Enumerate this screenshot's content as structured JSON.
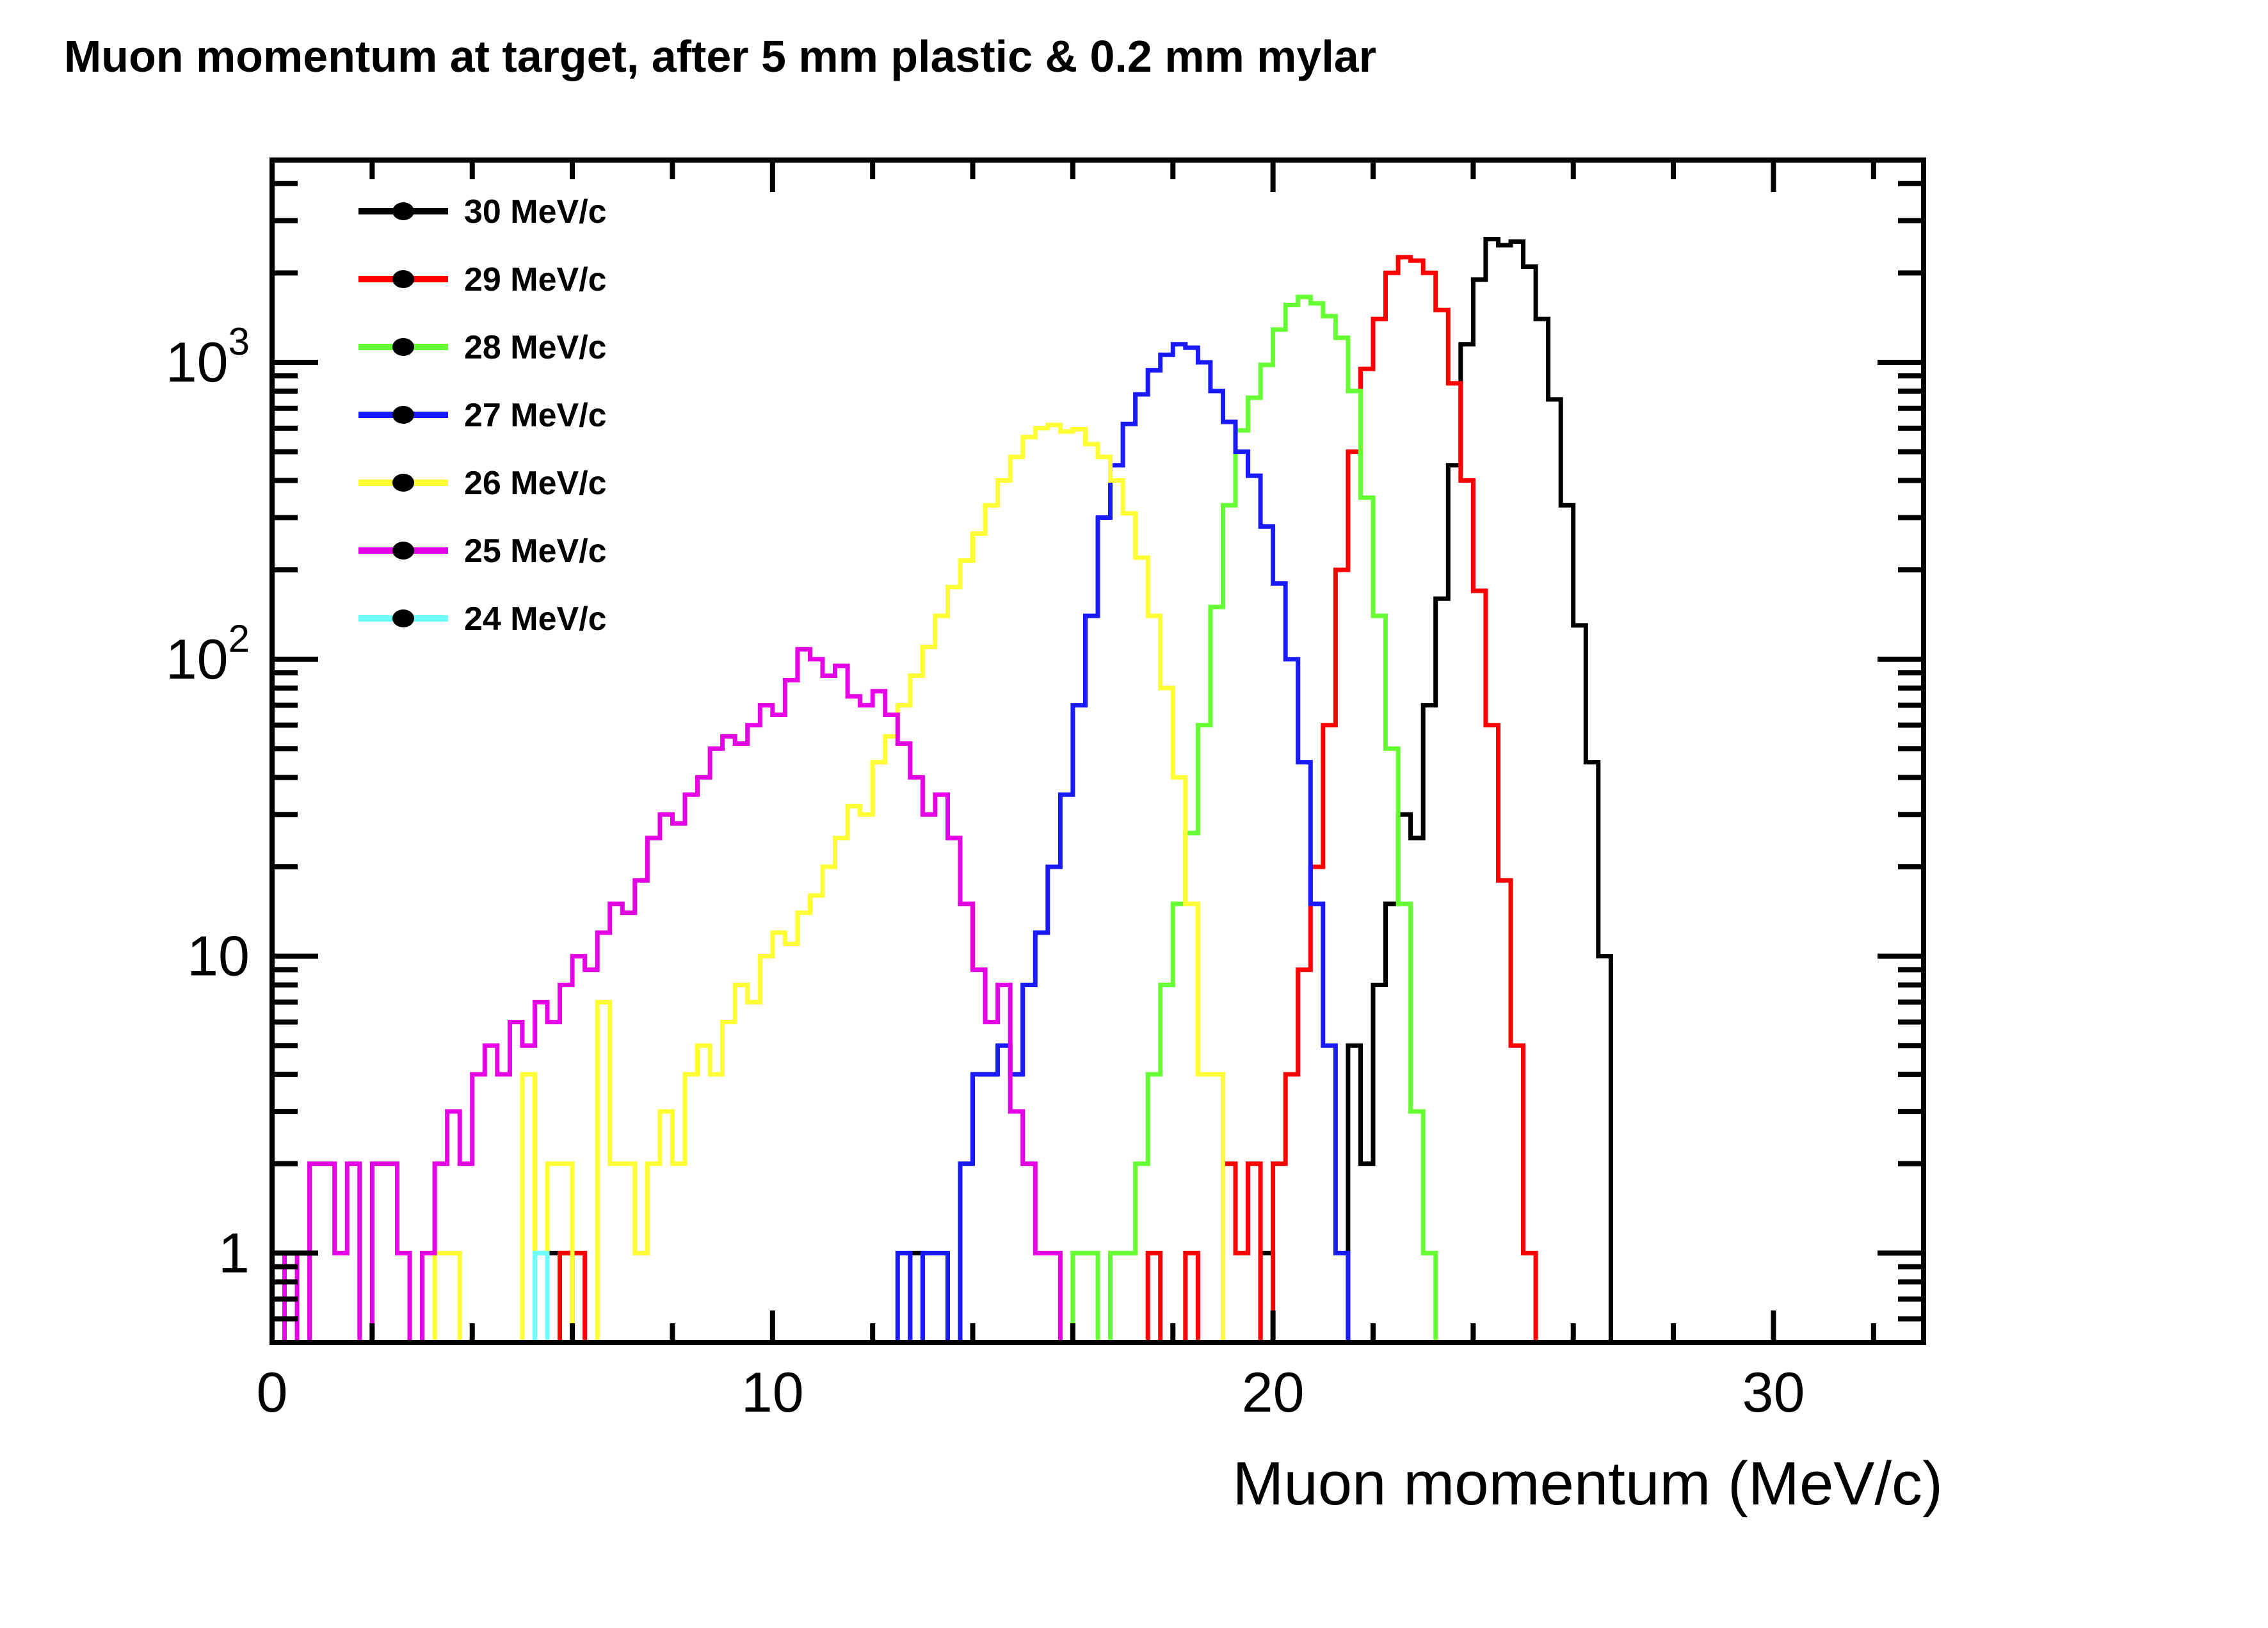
{
  "title": "Muon momentum at target, after 5 mm plastic & 0.2 mm mylar",
  "x_axis": {
    "title": "Muon momentum (MeV/c)",
    "tick_labels": [
      "0",
      "10",
      "20",
      "30"
    ],
    "tick_values": [
      0,
      10,
      20,
      30
    ],
    "range": [
      0,
      33
    ],
    "minor_step": 2
  },
  "y_axis": {
    "scale": "log",
    "range": [
      0.5,
      4800
    ],
    "tick_values": [
      1,
      10,
      100,
      1000
    ],
    "tick_labels": [
      {
        "base": "1",
        "exp": ""
      },
      {
        "base": "10",
        "exp": ""
      },
      {
        "base": "10",
        "exp": "2"
      },
      {
        "base": "10",
        "exp": "3"
      }
    ]
  },
  "legend": [
    {
      "label": "30 MeV/c",
      "color": "#000000"
    },
    {
      "label": "29 MeV/c",
      "color": "#ff0000"
    },
    {
      "label": "28 MeV/c",
      "color": "#66ff33"
    },
    {
      "label": "27 MeV/c",
      "color": "#1a1aff"
    },
    {
      "label": "26 MeV/c",
      "color": "#ffff33"
    },
    {
      "label": "25 MeV/c",
      "color": "#e600e6"
    },
    {
      "label": "24 MeV/c",
      "color": "#70ffff"
    }
  ],
  "chart_data": {
    "type": "histogram-step",
    "y_scale": "log",
    "bin_width": 0.25,
    "xlabel": "Muon momentum (MeV/c)",
    "ylim": [
      0.5,
      4800
    ],
    "xlim": [
      0,
      33
    ],
    "series": [
      {
        "name": "30 MeV/c",
        "color": "#000000",
        "x_start": 5.5,
        "values": [
          1,
          1,
          0,
          0,
          0,
          0,
          0,
          0,
          0,
          0,
          0,
          0,
          0,
          0,
          0,
          0,
          0,
          0,
          0,
          0,
          0,
          0,
          0,
          0,
          0,
          0,
          0,
          0,
          0,
          1,
          0,
          0,
          0,
          0,
          0,
          0,
          0,
          0,
          0,
          0,
          0,
          0,
          0,
          0,
          0,
          0,
          0,
          0,
          0,
          0,
          0,
          0,
          0,
          0,
          0,
          0,
          0,
          1,
          0,
          0,
          0,
          0,
          0,
          0,
          5,
          2,
          8,
          15,
          30,
          25,
          70,
          160,
          450,
          1150,
          1900,
          2600,
          2480,
          2550,
          2100,
          1400,
          750,
          330,
          130,
          45,
          10
        ]
      },
      {
        "name": "29 MeV/c",
        "color": "#ff0000",
        "x_start": 5.75,
        "values": [
          1,
          1,
          0,
          0,
          0,
          0,
          0,
          0,
          0,
          0,
          0,
          0,
          0,
          0,
          0,
          0,
          0,
          0,
          0,
          0,
          0,
          0,
          0,
          0,
          0,
          0,
          0,
          0,
          0,
          0,
          0,
          0,
          0,
          0,
          0,
          0,
          0,
          0,
          0,
          0,
          0,
          0,
          0,
          0,
          0,
          0,
          0,
          1,
          0,
          0,
          1,
          0,
          0,
          2,
          1,
          2,
          0,
          2,
          4,
          9,
          20,
          60,
          200,
          500,
          950,
          1400,
          2000,
          2260,
          2200,
          2000,
          1500,
          850,
          400,
          170,
          60,
          18,
          5,
          1
        ]
      },
      {
        "name": "28 MeV/c",
        "color": "#66ff33",
        "x_start": 16.0,
        "values": [
          1,
          1,
          0,
          1,
          1,
          2,
          4,
          8,
          15,
          26,
          60,
          150,
          330,
          590,
          760,
          980,
          1290,
          1560,
          1660,
          1580,
          1430,
          1210,
          800,
          350,
          140,
          50,
          15,
          3,
          1
        ]
      },
      {
        "name": "27 MeV/c",
        "color": "#1a1aff",
        "x_start": 12.5,
        "values": [
          1,
          0,
          1,
          1,
          0,
          2,
          4,
          4,
          5,
          4,
          8,
          12,
          20,
          35,
          70,
          140,
          300,
          450,
          620,
          780,
          940,
          1060,
          1150,
          1120,
          1000,
          800,
          630,
          500,
          415,
          280,
          180,
          100,
          45,
          15,
          5,
          1
        ]
      },
      {
        "name": "26 MeV/c",
        "color": "#ffff33",
        "x_start": 3.25,
        "values": [
          1,
          1,
          0,
          0,
          0,
          0,
          0,
          4,
          1,
          2,
          2,
          0,
          0,
          7,
          2,
          2,
          1,
          2,
          3,
          2,
          4,
          5,
          4,
          6,
          8,
          7,
          10,
          12,
          11,
          14,
          16,
          20,
          25,
          32,
          30,
          45,
          55,
          70,
          88,
          110,
          140,
          175,
          215,
          265,
          330,
          400,
          480,
          560,
          600,
          615,
          585,
          595,
          530,
          480,
          400,
          310,
          220,
          140,
          80,
          40,
          15,
          4,
          4
        ]
      },
      {
        "name": "25 MeV/c",
        "color": "#e600e6",
        "x_start": 0.25,
        "values": [
          1,
          0,
          2,
          2,
          1,
          2,
          0,
          2,
          2,
          1,
          0,
          1,
          2,
          3,
          2,
          4,
          5,
          4,
          6,
          5,
          7,
          6,
          8,
          10,
          9,
          12,
          15,
          14,
          18,
          25,
          30,
          28,
          35,
          40,
          50,
          55,
          52,
          60,
          70,
          65,
          85,
          108,
          100,
          88,
          95,
          75,
          70,
          78,
          65,
          52,
          40,
          30,
          35,
          25,
          15,
          9,
          6,
          8,
          3,
          2,
          1,
          1
        ]
      },
      {
        "name": "24 MeV/c",
        "color": "#70ffff",
        "x_start": 0,
        "x_end": 33,
        "baseline": 0,
        "spikes": [
          {
            "x": 5.25,
            "width": 0.25,
            "value": 1
          }
        ]
      }
    ]
  }
}
